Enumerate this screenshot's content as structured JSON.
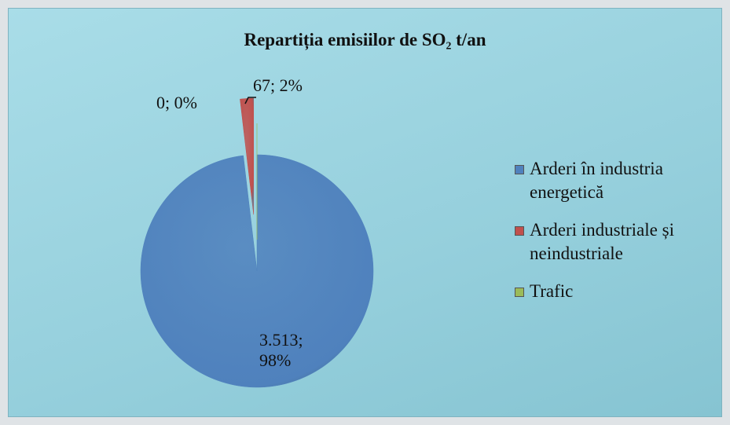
{
  "chart_data": {
    "type": "pie",
    "title": "Repartiția emisiilor de SO₂ t/an",
    "categories": [
      "Arderi în industria energetică",
      "Arderi industriale și neindustriale",
      "Trafic"
    ],
    "values": [
      3513,
      67,
      0
    ],
    "value_labels": [
      "3.513; 98%",
      "67; 2%",
      "0; 0%"
    ],
    "colors": [
      "#4f81bd",
      "#c0504d",
      "#9bbb59"
    ],
    "legend": "right"
  }
}
